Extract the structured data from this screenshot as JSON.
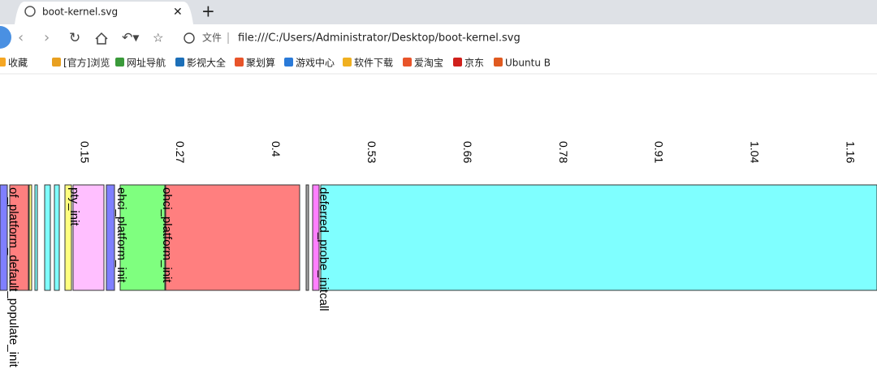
{
  "browser": {
    "tab_title": "boot-kernel.svg",
    "address_label": "文件",
    "url": "file:///C:/Users/Administrator/Desktop/boot-kernel.svg",
    "bookmarks": [
      "收藏",
      "[官方]浏览",
      "网址导航",
      "影视大全",
      "聚划算",
      "游戏中心",
      "软件下载",
      "爱淘宝",
      "京东",
      "Ubuntu B"
    ]
  },
  "graph": {
    "ticks": [
      0.15,
      0.27,
      0.4,
      0.53,
      0.66,
      0.78,
      0.91,
      1.04,
      1.16
    ],
    "blocks": [
      "of_platform_default_populate_init",
      "pty_init",
      "ehci_platform_init",
      "ohci_platform_init",
      "deferred_probe_initcall"
    ]
  }
}
